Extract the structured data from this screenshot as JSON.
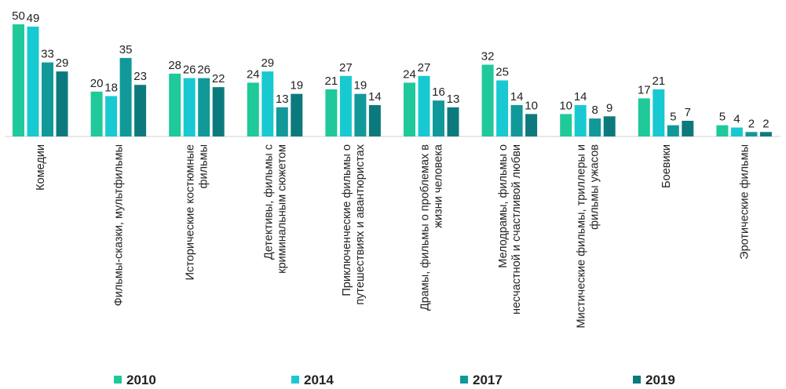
{
  "chart_data": {
    "type": "bar",
    "title": "",
    "xlabel": "",
    "ylabel": "",
    "ylim": [
      0,
      50
    ],
    "grid": false,
    "legend_position": "bottom",
    "categories": [
      [
        "Комедии"
      ],
      [
        "Фильмы-сказки, мультфильмы"
      ],
      [
        "Исторические костюмные",
        "фильмы"
      ],
      [
        "Детективы, фильмы с",
        "криминальным сюжетом"
      ],
      [
        "Приключенческие фильмы о",
        "путешествиях и авантюристах"
      ],
      [
        "Драмы, фильмы о проблемах в",
        "жизни человека"
      ],
      [
        "Мелодрамы, фильмы о",
        "несчастной и счастливой любви"
      ],
      [
        "Мистические фильмы, триллеры и",
        "фильмы ужасов"
      ],
      [
        "Боевики"
      ],
      [
        "Эротические фильмы"
      ]
    ],
    "series": [
      {
        "name": "2010",
        "color": "#1fc99a",
        "values": [
          50,
          20,
          28,
          24,
          21,
          24,
          32,
          10,
          17,
          5
        ]
      },
      {
        "name": "2014",
        "color": "#19c9d1",
        "values": [
          49,
          18,
          26,
          29,
          27,
          27,
          25,
          14,
          21,
          4
        ]
      },
      {
        "name": "2017",
        "color": "#11999a",
        "values": [
          33,
          35,
          26,
          13,
          19,
          16,
          14,
          8,
          5,
          2
        ]
      },
      {
        "name": "2019",
        "color": "#0c7a7d",
        "values": [
          29,
          23,
          22,
          19,
          14,
          13,
          10,
          9,
          7,
          2
        ]
      }
    ]
  }
}
